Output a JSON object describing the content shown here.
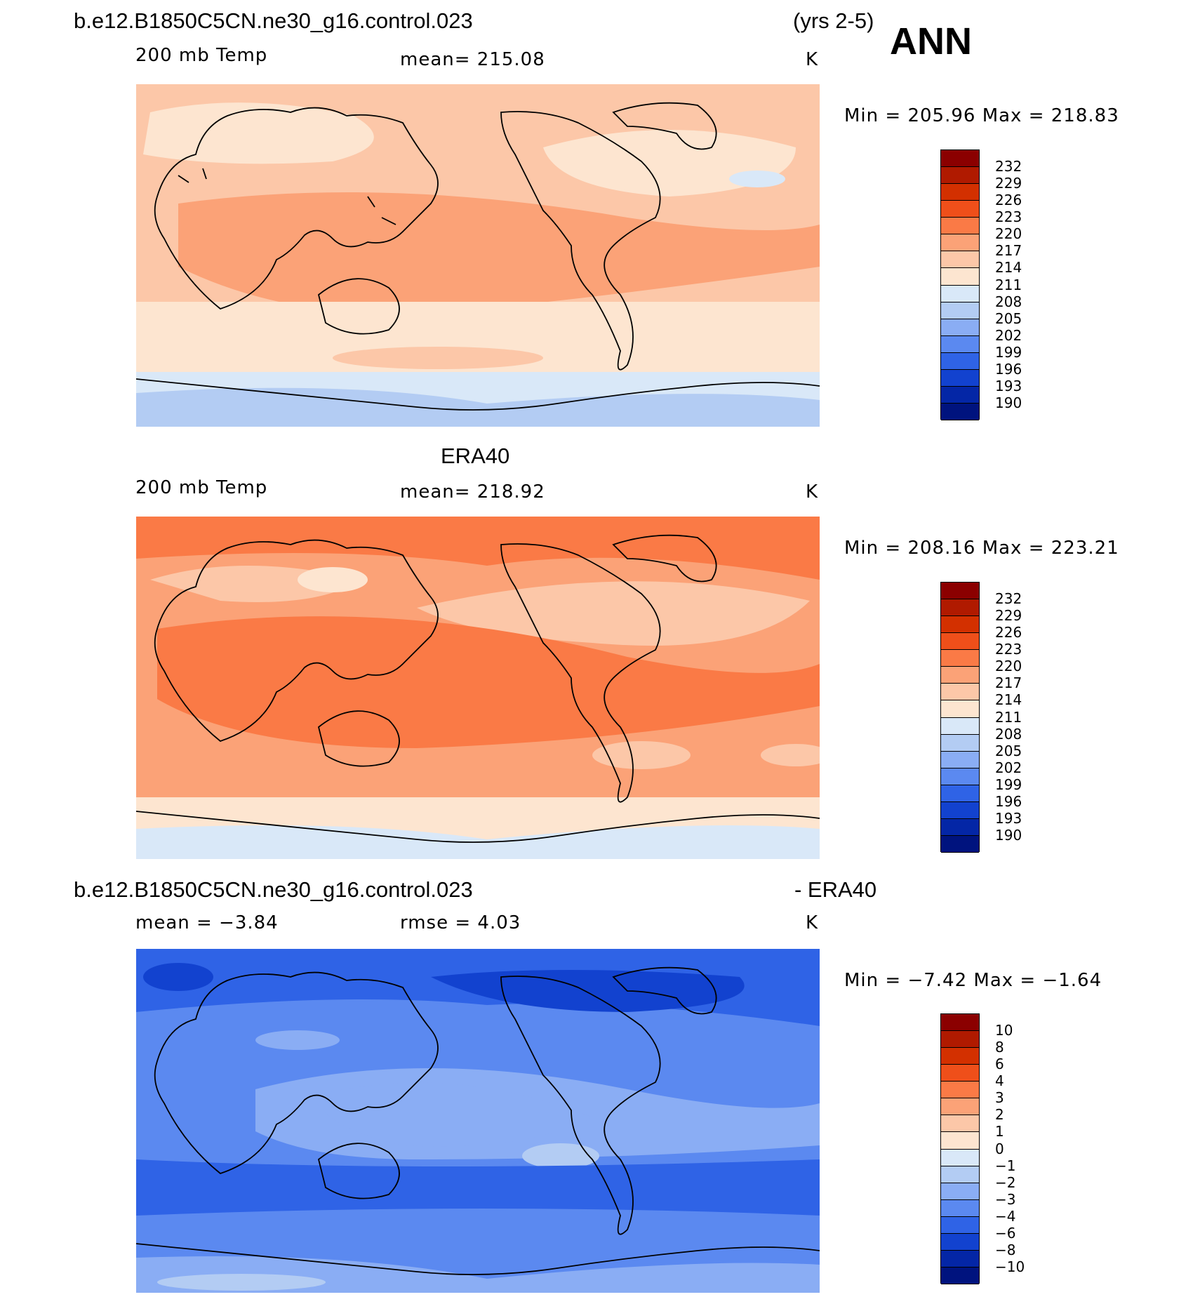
{
  "header": {
    "case_name": "b.e12.B1850C5CN.ne30_g16.control.023",
    "years": "(yrs 2-5)",
    "season": "ANN"
  },
  "panels": [
    {
      "title": "",
      "variable": "200 mb Temp",
      "stat1": "mean=  215.08",
      "stat2": "",
      "units": "K",
      "minmax": "Min  =  205.96  Max  =  218.83",
      "min": 205.96,
      "max": 218.83,
      "levels": [
        "232",
        "229",
        "226",
        "223",
        "220",
        "217",
        "214",
        "211",
        "208",
        "205",
        "202",
        "199",
        "196",
        "193",
        "190"
      ],
      "colors": [
        "#8b0000",
        "#b01a00",
        "#d33000",
        "#ef4f1a",
        "#fa7a46",
        "#fba277",
        "#fcc7a8",
        "#fde5d0",
        "#d9e8f8",
        "#b3ccf3",
        "#8aadf4",
        "#5b89f0",
        "#2f63e6",
        "#1242cf",
        "#0426a6",
        "#00137e"
      ]
    },
    {
      "title": "ERA40",
      "variable": "200 mb Temp",
      "stat1": "mean=  218.92",
      "stat2": "",
      "units": "K",
      "minmax": "Min  =  208.16  Max  =  223.21",
      "min": 208.16,
      "max": 223.21,
      "levels": [
        "232",
        "229",
        "226",
        "223",
        "220",
        "217",
        "214",
        "211",
        "208",
        "205",
        "202",
        "199",
        "196",
        "193",
        "190"
      ],
      "colors": [
        "#8b0000",
        "#b01a00",
        "#d33000",
        "#ef4f1a",
        "#fa7a46",
        "#fba277",
        "#fcc7a8",
        "#fde5d0",
        "#d9e8f8",
        "#b3ccf3",
        "#8aadf4",
        "#5b89f0",
        "#2f63e6",
        "#1242cf",
        "#0426a6",
        "#00137e"
      ]
    },
    {
      "title": "b.e12.B1850C5CN.ne30_g16.control.023",
      "title_right": "- ERA40",
      "variable": "",
      "stat1": "mean  =    −3.84",
      "stat2": "rmse  =     4.03",
      "units": "K",
      "minmax": "Min  =    −7.42  Max  =    −1.64",
      "min": -7.42,
      "max": -1.64,
      "levels": [
        "10",
        "8",
        "6",
        "4",
        "3",
        "2",
        "1",
        "0",
        "−1",
        "−2",
        "−3",
        "−4",
        "−6",
        "−8",
        "−10"
      ],
      "colors": [
        "#8b0000",
        "#b01a00",
        "#d33000",
        "#ef4f1a",
        "#fa7a46",
        "#fba277",
        "#fcc7a8",
        "#fde5d0",
        "#d9e8f8",
        "#b3ccf3",
        "#8aadf4",
        "#5b89f0",
        "#2f63e6",
        "#1242cf",
        "#0426a6",
        "#00137e"
      ]
    }
  ]
}
